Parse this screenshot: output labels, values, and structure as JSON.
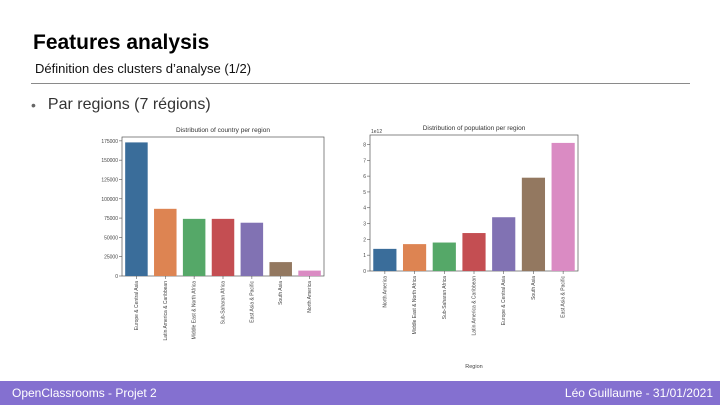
{
  "slide": {
    "title": "Features analysis",
    "subtitle": "Définition des clusters d’analyse (1/2)",
    "bullet": "Par regions (7 régions)"
  },
  "footer": {
    "left": "OpenClassrooms - Projet 2",
    "right": "Léo Guillaume - 31/01/2021"
  },
  "chart_data": [
    {
      "type": "bar",
      "title": "Distribution of country per region",
      "xlabel": "",
      "ylabel": "",
      "categories": [
        "Europe & Central Asia",
        "Latin America & Caribbean",
        "Middle East & North Africa",
        "Sub-Saharan Africa",
        "East Asia & Pacific",
        "South Asia",
        "North America"
      ],
      "values": [
        173000,
        87000,
        74000,
        74000,
        69000,
        18000,
        7000
      ],
      "ylim": [
        0,
        180000
      ],
      "yticks": [
        0,
        25000,
        50000,
        75000,
        100000,
        125000,
        150000,
        175000
      ],
      "ytick_labels": [
        "0",
        "25000",
        "50000",
        "75000",
        "100000",
        "125000",
        "150000",
        "175000"
      ],
      "colors": [
        "#3a6d9a",
        "#dd8452",
        "#55a868",
        "#c44e52",
        "#8172b3",
        "#937860",
        "#da8bc3"
      ],
      "grid": false,
      "legend": "none"
    },
    {
      "type": "bar",
      "title": "Distribution of population per region",
      "xlabel": "Region",
      "ylabel": "",
      "offset_text": "1e12",
      "categories": [
        "North America",
        "Middle East & North Africa",
        "Sub-Saharan Africa",
        "Latin America & Caribbean",
        "Europe & Central Asia",
        "South Asia",
        "East Asia & Pacific"
      ],
      "values": [
        1.4,
        1.7,
        1.8,
        2.4,
        3.4,
        5.9,
        8.1
      ],
      "ylim": [
        0,
        8.6
      ],
      "yticks": [
        0,
        1,
        2,
        3,
        4,
        5,
        6,
        7,
        8
      ],
      "ytick_labels": [
        "0",
        "1",
        "2",
        "3",
        "4",
        "5",
        "6",
        "7",
        "8"
      ],
      "colors": [
        "#3a6d9a",
        "#dd8452",
        "#55a868",
        "#c44e52",
        "#8172b3",
        "#937860",
        "#da8bc3"
      ],
      "grid": false,
      "legend": "none"
    }
  ]
}
